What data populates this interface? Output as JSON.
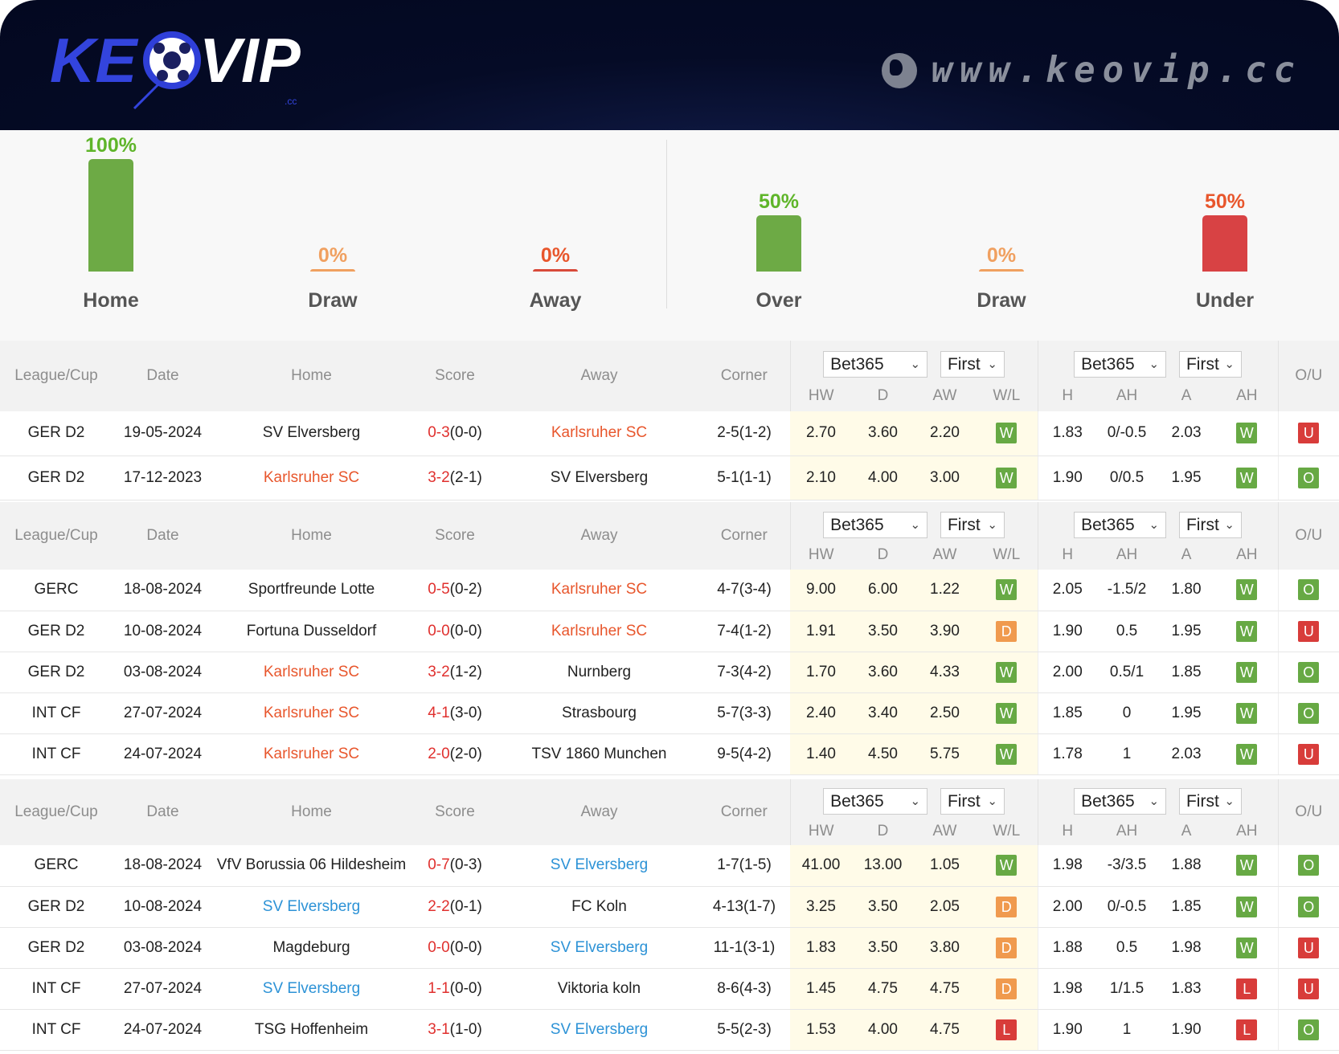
{
  "brand": {
    "logo_text": "KEOVIP",
    "logo_sub": ".cc",
    "site_url": "www.keovip.cc"
  },
  "stats": {
    "result": [
      {
        "label": "Home",
        "pct": "100%",
        "value": 100,
        "color": "#6daa45",
        "text": "#5fb52a"
      },
      {
        "label": "Draw",
        "pct": "0%",
        "value": 0,
        "color": "#f0a060",
        "text": "#f0a060"
      },
      {
        "label": "Away",
        "pct": "0%",
        "value": 0,
        "color": "#d84a3a",
        "text": "#e8562c"
      }
    ],
    "ou": [
      {
        "label": "Over",
        "pct": "50%",
        "value": 50,
        "color": "#6daa45",
        "text": "#5fb52a"
      },
      {
        "label": "Draw",
        "pct": "0%",
        "value": 0,
        "color": "#f0a060",
        "text": "#f0a060"
      },
      {
        "label": "Under",
        "pct": "50%",
        "value": 50,
        "color": "#d84244",
        "text": "#e8562c"
      }
    ]
  },
  "columns": {
    "league": "League/Cup",
    "date": "Date",
    "home": "Home",
    "score": "Score",
    "away": "Away",
    "corner": "Corner",
    "hw": "HW",
    "d": "D",
    "aw": "AW",
    "wl": "W/L",
    "h": "H",
    "ah": "AH",
    "a": "A",
    "ah2": "AH",
    "ou": "O/U",
    "bookmaker": "Bet365",
    "period": "First"
  },
  "sections": [
    {
      "rows": [
        {
          "league": "GER D2",
          "date": "19-05-2024",
          "home": "SV Elversberg",
          "hh": "",
          "ft": "0-3",
          "ht": "(0-0)",
          "away": "Karlsruher SC",
          "ah_hl": "k",
          "corner": "2-5(1-2)",
          "hw": "2.70",
          "d": "3.60",
          "aw": "2.20",
          "wl": "W",
          "h": "1.83",
          "ah": "0/-0.5",
          "a": "2.03",
          "ahr": "W",
          "ou": "U"
        },
        {
          "league": "GER D2",
          "date": "17-12-2023",
          "home": "Karlsruher SC",
          "hh": "k",
          "ft": "3-2",
          "ht": "(2-1)",
          "away": "SV Elversberg",
          "ah_hl": "",
          "corner": "5-1(1-1)",
          "hw": "2.10",
          "d": "4.00",
          "aw": "3.00",
          "wl": "W",
          "h": "1.90",
          "ah": "0/0.5",
          "a": "1.95",
          "ahr": "W",
          "ou": "O"
        }
      ]
    },
    {
      "rows": [
        {
          "league": "GERC",
          "date": "18-08-2024",
          "home": "Sportfreunde Lotte",
          "hh": "",
          "ft": "0-5",
          "ht": "(0-2)",
          "away": "Karlsruher SC",
          "ah_hl": "k",
          "corner": "4-7(3-4)",
          "hw": "9.00",
          "d": "6.00",
          "aw": "1.22",
          "wl": "W",
          "h": "2.05",
          "ah": "-1.5/2",
          "a": "1.80",
          "ahr": "W",
          "ou": "O"
        },
        {
          "league": "GER D2",
          "date": "10-08-2024",
          "home": "Fortuna Dusseldorf",
          "hh": "",
          "ft": "0-0",
          "ht": "(0-0)",
          "away": "Karlsruher SC",
          "ah_hl": "k",
          "corner": "7-4(1-2)",
          "hw": "1.91",
          "d": "3.50",
          "aw": "3.90",
          "wl": "D",
          "h": "1.90",
          "ah": "0.5",
          "a": "1.95",
          "ahr": "W",
          "ou": "U"
        },
        {
          "league": "GER D2",
          "date": "03-08-2024",
          "home": "Karlsruher SC",
          "hh": "k",
          "ft": "3-2",
          "ht": "(1-2)",
          "away": "Nurnberg",
          "ah_hl": "",
          "corner": "7-3(4-2)",
          "hw": "1.70",
          "d": "3.60",
          "aw": "4.33",
          "wl": "W",
          "h": "2.00",
          "ah": "0.5/1",
          "a": "1.85",
          "ahr": "W",
          "ou": "O"
        },
        {
          "league": "INT CF",
          "date": "27-07-2024",
          "home": "Karlsruher SC",
          "hh": "k",
          "ft": "4-1",
          "ht": "(3-0)",
          "away": "Strasbourg",
          "ah_hl": "",
          "corner": "5-7(3-3)",
          "hw": "2.40",
          "d": "3.40",
          "aw": "2.50",
          "wl": "W",
          "h": "1.85",
          "ah": "0",
          "a": "1.95",
          "ahr": "W",
          "ou": "O"
        },
        {
          "league": "INT CF",
          "date": "24-07-2024",
          "home": "Karlsruher SC",
          "hh": "k",
          "ft": "2-0",
          "ht": "(2-0)",
          "away": "TSV 1860 Munchen",
          "ah_hl": "",
          "corner": "9-5(4-2)",
          "hw": "1.40",
          "d": "4.50",
          "aw": "5.75",
          "wl": "W",
          "h": "1.78",
          "ah": "1",
          "a": "2.03",
          "ahr": "W",
          "ou": "U"
        }
      ]
    },
    {
      "rows": [
        {
          "league": "GERC",
          "date": "18-08-2024",
          "home": "VfV Borussia 06 Hildesheim",
          "hh": "",
          "ft": "0-7",
          "ht": "(0-3)",
          "away": "SV Elversberg",
          "ah_hl": "e",
          "corner": "1-7(1-5)",
          "hw": "41.00",
          "d": "13.00",
          "aw": "1.05",
          "wl": "W",
          "h": "1.98",
          "ah": "-3/3.5",
          "a": "1.88",
          "ahr": "W",
          "ou": "O"
        },
        {
          "league": "GER D2",
          "date": "10-08-2024",
          "home": "SV Elversberg",
          "hh": "e",
          "ft": "2-2",
          "ht": "(0-1)",
          "away": "FC Koln",
          "ah_hl": "",
          "corner": "4-13(1-7)",
          "hw": "3.25",
          "d": "3.50",
          "aw": "2.05",
          "wl": "D",
          "h": "2.00",
          "ah": "0/-0.5",
          "a": "1.85",
          "ahr": "W",
          "ou": "O"
        },
        {
          "league": "GER D2",
          "date": "03-08-2024",
          "home": "Magdeburg",
          "hh": "",
          "ft": "0-0",
          "ht": "(0-0)",
          "away": "SV Elversberg",
          "ah_hl": "e",
          "corner": "11-1(3-1)",
          "hw": "1.83",
          "d": "3.50",
          "aw": "3.80",
          "wl": "D",
          "h": "1.88",
          "ah": "0.5",
          "a": "1.98",
          "ahr": "W",
          "ou": "U"
        },
        {
          "league": "INT CF",
          "date": "27-07-2024",
          "home": "SV Elversberg",
          "hh": "e",
          "ft": "1-1",
          "ht": "(0-0)",
          "away": "Viktoria koln",
          "ah_hl": "",
          "corner": "8-6(4-3)",
          "hw": "1.45",
          "d": "4.75",
          "aw": "4.75",
          "wl": "D",
          "h": "1.98",
          "ah": "1/1.5",
          "a": "1.83",
          "ahr": "L",
          "ou": "U"
        },
        {
          "league": "INT CF",
          "date": "24-07-2024",
          "home": "TSG Hoffenheim",
          "hh": "",
          "ft": "3-1",
          "ht": "(1-0)",
          "away": "SV Elversberg",
          "ah_hl": "e",
          "corner": "5-5(2-3)",
          "hw": "1.53",
          "d": "4.00",
          "aw": "4.75",
          "wl": "L",
          "h": "1.90",
          "ah": "1",
          "a": "1.90",
          "ahr": "L",
          "ou": "O"
        }
      ]
    }
  ]
}
